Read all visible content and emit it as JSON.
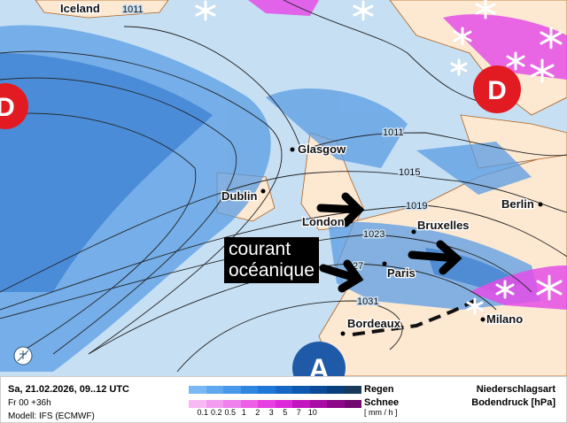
{
  "map": {
    "cities": [
      "Iceland",
      "Glasgow",
      "Dublin",
      "London",
      "Bruxelles",
      "Berlin",
      "Paris",
      "Bordeaux",
      "Milano"
    ],
    "isobars": [
      "1011",
      "1011",
      "1015",
      "1019",
      "1023",
      "27",
      "1031"
    ],
    "lows": [
      "D",
      "D"
    ],
    "high": "A",
    "annotation": [
      "courant",
      "océanique"
    ],
    "colors": {
      "sea": "#c6dff3",
      "land": "#fde8d2",
      "rain": "#4b92de",
      "snow": "#e040e8",
      "low": "#e21b23",
      "high": "#1e5aa8"
    }
  },
  "footer": {
    "date": "Sa, 21.02.2026, 09..12 UTC",
    "run": "Fr 00 +36h",
    "model": "Modell: IFS (ECMWF)",
    "rain_label": "Regen",
    "snow_label": "Schnee",
    "ticks": [
      "0.1",
      "0.2",
      "0.5",
      "1",
      "2",
      "3",
      "5",
      "7",
      "10"
    ],
    "unit": "[ mm / h ]",
    "title1": "Niederschlagsart",
    "title2": "Bodendruck [hPa]",
    "rain_colors": [
      "#7ab8f5",
      "#5ea8f0",
      "#4898ea",
      "#2f86e0",
      "#1f78d6",
      "#1668c4",
      "#0e58b0",
      "#0a4a98",
      "#08407e",
      "#1a3a5a"
    ],
    "snow_colors": [
      "#f8b8f4",
      "#f49cf0",
      "#f080ec",
      "#ec60e8",
      "#e640e2",
      "#dc28d8",
      "#c414c0",
      "#a80ca4",
      "#8c0888",
      "#700870"
    ]
  }
}
